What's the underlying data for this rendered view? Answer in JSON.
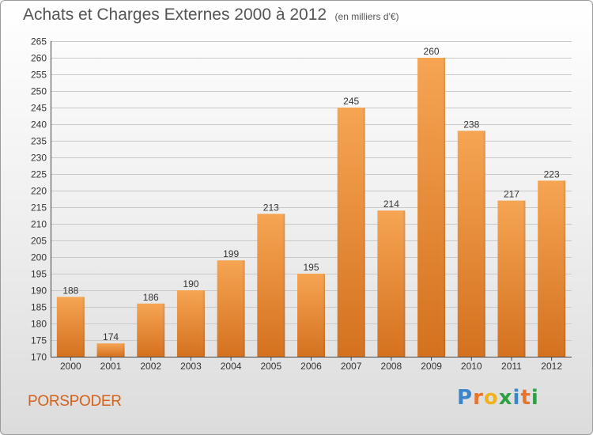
{
  "header": {
    "title": "Achats et Charges Externes 2000 à 2012",
    "unit_note": "(en milliers d'€)"
  },
  "footer": {
    "place": "PORSPODER",
    "logo_letters": [
      "P",
      "r",
      "o",
      "x",
      "i",
      "t",
      "i"
    ],
    "logo_colors": [
      "#3a86c8",
      "#e8732a",
      "#f2b21b",
      "#2f9f45",
      "#3a86c8",
      "#e8732a",
      "#2f9f45"
    ]
  },
  "colors": {
    "bar_top": "#f6a553",
    "bar_bottom": "#d4711e",
    "grid": "#c9c9c9",
    "axis_text": "#333333"
  },
  "chart_data": {
    "type": "bar",
    "title": "Achats et Charges Externes 2000 à 2012",
    "categories": [
      "2000",
      "2001",
      "2002",
      "2003",
      "2004",
      "2005",
      "2006",
      "2007",
      "2008",
      "2009",
      "2010",
      "2011",
      "2012"
    ],
    "values": [
      188,
      174,
      186,
      190,
      199,
      213,
      195,
      245,
      214,
      260,
      238,
      217,
      223
    ],
    "ylim": [
      170,
      265
    ],
    "yticks": [
      170,
      175,
      180,
      185,
      190,
      195,
      200,
      205,
      210,
      215,
      220,
      225,
      230,
      235,
      240,
      245,
      250,
      255,
      260,
      265
    ],
    "grid": true,
    "xlabel": "",
    "ylabel": ""
  }
}
